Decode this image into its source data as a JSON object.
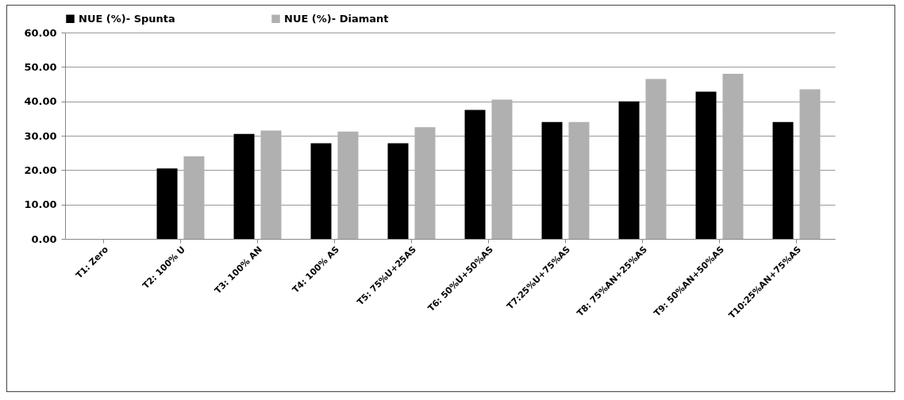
{
  "chart_data": {
    "type": "bar",
    "categories": [
      "T1: Zero",
      "T2: 100% U",
      "T3: 100% AN",
      "T4: 100% AS",
      "T5: 75%U+25AS",
      "T6: 50%U+50%AS",
      "T7:25%U+75%AS",
      "T8: 75%AN+25%AS",
      "T9: 50%AN+50%AS",
      "T10:25%AN+75%AS"
    ],
    "series": [
      {
        "name": "NUE (%)- Spunta",
        "color": "#000000",
        "values": [
          0,
          20.5,
          30.5,
          27.8,
          27.8,
          37.5,
          34.0,
          40.0,
          42.8,
          34.0
        ]
      },
      {
        "name": "NUE (%)- Diamant",
        "color": "#b0b0b0",
        "values": [
          0,
          24.0,
          31.5,
          31.2,
          32.5,
          40.5,
          34.0,
          46.5,
          48.0,
          43.5
        ]
      }
    ],
    "ylim": [
      0,
      60
    ],
    "yticks": [
      {
        "value": 0,
        "label": "0.00"
      },
      {
        "value": 10,
        "label": "10.00"
      },
      {
        "value": 20,
        "label": "20.00"
      },
      {
        "value": 30,
        "label": "30.00"
      },
      {
        "value": 40,
        "label": "40.00"
      },
      {
        "value": 50,
        "label": "50.00"
      },
      {
        "value": 60,
        "label": "60.00"
      }
    ],
    "grid": "y",
    "legend": "top"
  }
}
